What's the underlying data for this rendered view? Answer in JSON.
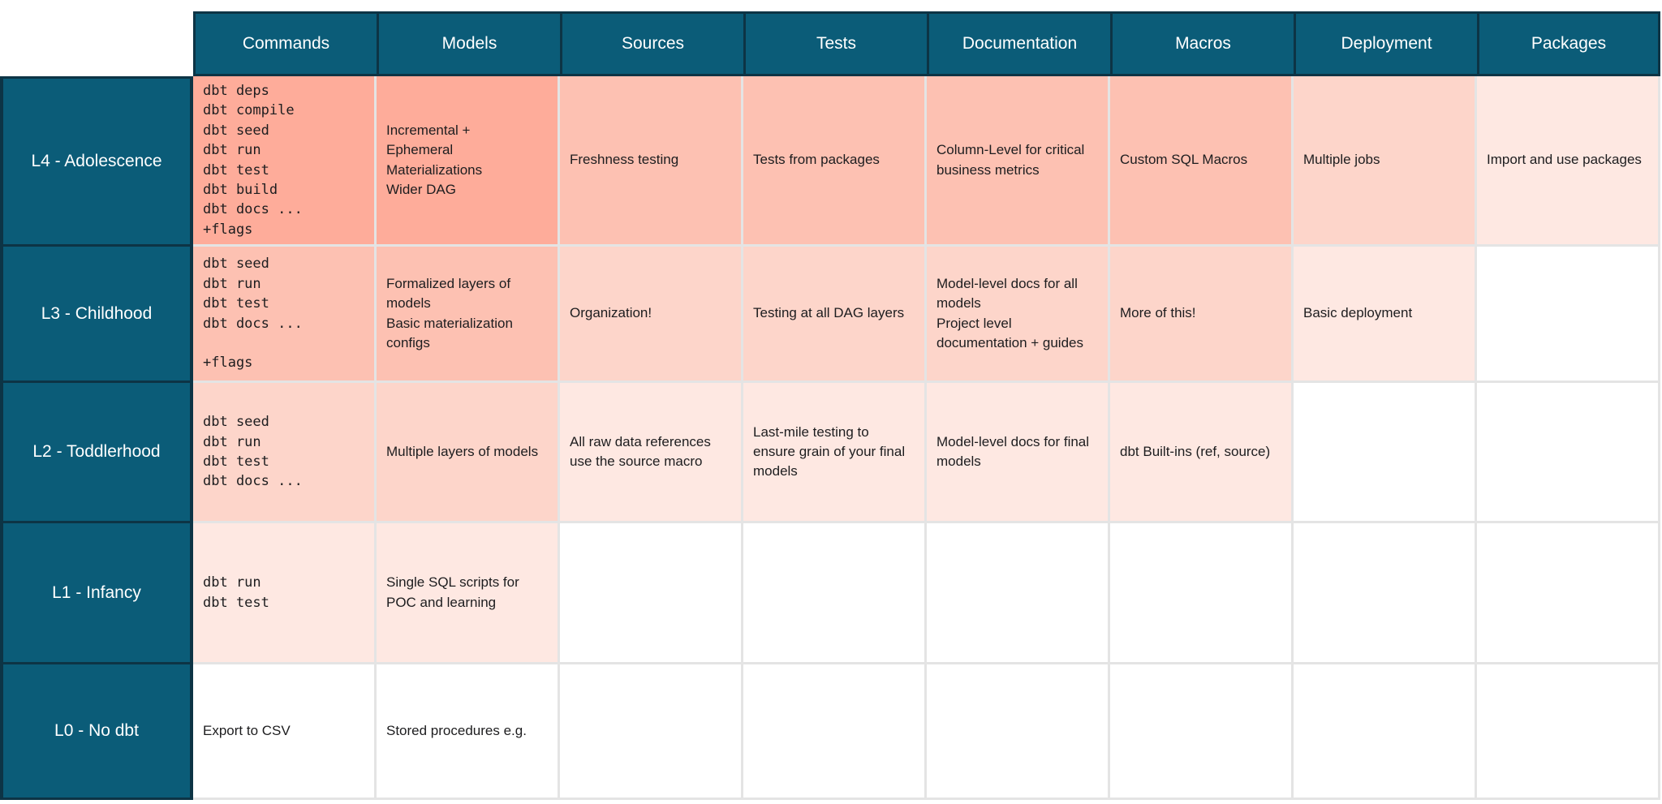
{
  "palette": {
    "teal": "#0b5c78",
    "border_dark": "#0d3445",
    "border_light": "#e4e4e4",
    "header_text": "#ffffff",
    "body_text": "#1d1d1f",
    "shades": [
      "#ffffff",
      "#fee8e2",
      "#fdd5ca",
      "#fdc1b2",
      "#feac9a"
    ]
  },
  "columns": [
    "Commands",
    "Models",
    "Sources",
    "Tests",
    "Documentation",
    "Macros",
    "Deployment",
    "Packages"
  ],
  "rows": [
    {
      "label": "L4 - Adolescence",
      "cells": [
        {
          "text": "dbt deps\ndbt compile\ndbt seed\ndbt run\ndbt test\ndbt build\ndbt docs ...\n+flags",
          "mono": true,
          "shade": 4
        },
        {
          "text": "Incremental +\nEphemeral\nMaterializations\nWider DAG",
          "mono": false,
          "shade": 4
        },
        {
          "text": "Freshness testing",
          "mono": false,
          "shade": 3
        },
        {
          "text": "Tests from packages",
          "mono": false,
          "shade": 3
        },
        {
          "text": "Column-Level for critical business metrics",
          "mono": false,
          "shade": 3
        },
        {
          "text": "Custom SQL Macros",
          "mono": false,
          "shade": 3
        },
        {
          "text": "Multiple jobs",
          "mono": false,
          "shade": 2
        },
        {
          "text": "Import and use packages",
          "mono": false,
          "shade": 1
        }
      ]
    },
    {
      "label": "L3 - Childhood",
      "cells": [
        {
          "text": "dbt seed\ndbt run\ndbt test\ndbt docs ...\n\n+flags",
          "mono": true,
          "shade": 3
        },
        {
          "text": "Formalized layers of models\nBasic materialization configs",
          "mono": false,
          "shade": 3
        },
        {
          "text": "Organization!",
          "mono": false,
          "shade": 2
        },
        {
          "text": "Testing at all DAG layers",
          "mono": false,
          "shade": 2
        },
        {
          "text": "Model-level docs for all models\nProject level documentation + guides",
          "mono": false,
          "shade": 2
        },
        {
          "text": "More of this!",
          "mono": false,
          "shade": 2
        },
        {
          "text": "Basic deployment",
          "mono": false,
          "shade": 1
        },
        {
          "text": "",
          "mono": false,
          "shade": 0
        }
      ]
    },
    {
      "label": "L2 - Toddlerhood",
      "cells": [
        {
          "text": "dbt seed\ndbt run\ndbt test\ndbt docs ...",
          "mono": true,
          "shade": 2
        },
        {
          "text": "Multiple layers of models",
          "mono": false,
          "shade": 2
        },
        {
          "text": "All raw data references use the source macro",
          "mono": false,
          "shade": 1
        },
        {
          "text": "Last-mile testing to ensure grain of your final models",
          "mono": false,
          "shade": 1
        },
        {
          "text": "Model-level docs for final models",
          "mono": false,
          "shade": 1
        },
        {
          "text": "dbt Built-ins (ref, source)",
          "mono": false,
          "shade": 1
        },
        {
          "text": "",
          "mono": false,
          "shade": 0
        },
        {
          "text": "",
          "mono": false,
          "shade": 0
        }
      ]
    },
    {
      "label": "L1 - Infancy",
      "cells": [
        {
          "text": "dbt run\ndbt test",
          "mono": true,
          "shade": 1
        },
        {
          "text": "Single SQL scripts for POC and learning",
          "mono": false,
          "shade": 1
        },
        {
          "text": "",
          "mono": false,
          "shade": 0
        },
        {
          "text": "",
          "mono": false,
          "shade": 0
        },
        {
          "text": "",
          "mono": false,
          "shade": 0
        },
        {
          "text": "",
          "mono": false,
          "shade": 0
        },
        {
          "text": "",
          "mono": false,
          "shade": 0
        },
        {
          "text": "",
          "mono": false,
          "shade": 0
        }
      ]
    },
    {
      "label": "L0 - No dbt",
      "cells": [
        {
          "text": "Export to CSV",
          "mono": false,
          "shade": 0
        },
        {
          "text": "Stored procedures e.g.",
          "mono": false,
          "shade": 0
        },
        {
          "text": "",
          "mono": false,
          "shade": 0
        },
        {
          "text": "",
          "mono": false,
          "shade": 0
        },
        {
          "text": "",
          "mono": false,
          "shade": 0
        },
        {
          "text": "",
          "mono": false,
          "shade": 0
        },
        {
          "text": "",
          "mono": false,
          "shade": 0
        },
        {
          "text": "",
          "mono": false,
          "shade": 0
        }
      ]
    }
  ]
}
